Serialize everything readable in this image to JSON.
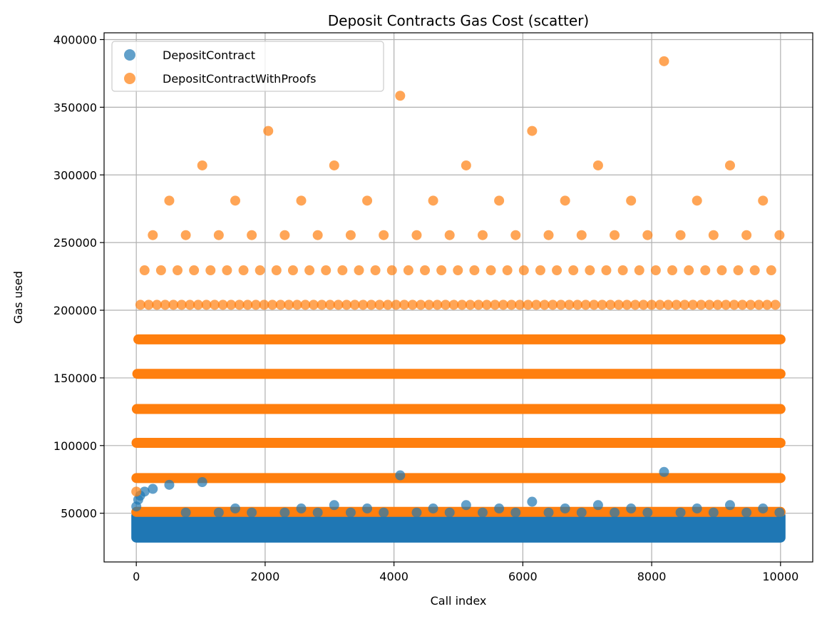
{
  "chart_data": {
    "type": "scatter",
    "title": "Deposit Contracts Gas Cost (scatter)",
    "xlabel": "Call index",
    "ylabel": "Gas used",
    "xlim": [
      -500,
      10500
    ],
    "ylim": [
      14000,
      405000
    ],
    "xticks": [
      0,
      2000,
      4000,
      6000,
      8000,
      10000
    ],
    "yticks": [
      50000,
      100000,
      150000,
      200000,
      250000,
      300000,
      350000,
      400000
    ],
    "grid": true,
    "legend_position": "top-left",
    "series": [
      {
        "name": "DepositContract",
        "color": "#1f77b4",
        "alpha": 0.7,
        "bands": [
          {
            "x_start": 0,
            "x_end": 10000,
            "y_min": 32000,
            "y_max": 48000
          }
        ],
        "points": [
          {
            "x": 0,
            "y": 55000
          },
          {
            "x": 30,
            "y": 60000
          },
          {
            "x": 60,
            "y": 63000
          },
          {
            "x": 128,
            "y": 66000
          },
          {
            "x": 256,
            "y": 68000
          },
          {
            "x": 512,
            "y": 71000
          },
          {
            "x": 1024,
            "y": 73000
          },
          {
            "x": 768,
            "y": 50500
          },
          {
            "x": 1280,
            "y": 50500
          },
          {
            "x": 1536,
            "y": 53500
          },
          {
            "x": 1792,
            "y": 50500
          },
          {
            "x": 2304,
            "y": 50500
          },
          {
            "x": 2560,
            "y": 53500
          },
          {
            "x": 2816,
            "y": 50500
          },
          {
            "x": 3072,
            "y": 56000
          },
          {
            "x": 3328,
            "y": 50500
          },
          {
            "x": 3584,
            "y": 53500
          },
          {
            "x": 3840,
            "y": 50500
          },
          {
            "x": 4096,
            "y": 78000
          },
          {
            "x": 4352,
            "y": 50500
          },
          {
            "x": 4608,
            "y": 53500
          },
          {
            "x": 4864,
            "y": 50500
          },
          {
            "x": 5120,
            "y": 56000
          },
          {
            "x": 5376,
            "y": 50500
          },
          {
            "x": 5632,
            "y": 53500
          },
          {
            "x": 5888,
            "y": 50500
          },
          {
            "x": 6144,
            "y": 58500
          },
          {
            "x": 6400,
            "y": 50500
          },
          {
            "x": 6656,
            "y": 53500
          },
          {
            "x": 6912,
            "y": 50500
          },
          {
            "x": 7168,
            "y": 56000
          },
          {
            "x": 7424,
            "y": 50500
          },
          {
            "x": 7680,
            "y": 53500
          },
          {
            "x": 7936,
            "y": 50500
          },
          {
            "x": 8192,
            "y": 80500
          },
          {
            "x": 8448,
            "y": 50500
          },
          {
            "x": 8704,
            "y": 53500
          },
          {
            "x": 8960,
            "y": 50500
          },
          {
            "x": 9216,
            "y": 56000
          },
          {
            "x": 9472,
            "y": 50500
          },
          {
            "x": 9728,
            "y": 53500
          },
          {
            "x": 9984,
            "y": 50500
          }
        ]
      },
      {
        "name": "DepositContractWithProofs",
        "color": "#ff7f0e",
        "alpha": 0.7,
        "levels": [
          {
            "y": 51000,
            "step": 2,
            "x_start": 0,
            "x_end": 10000
          },
          {
            "y": 76000,
            "step": 4,
            "x_start": 2,
            "x_end": 10000
          },
          {
            "y": 102000,
            "step": 8,
            "x_start": 4,
            "x_end": 10000
          },
          {
            "y": 127000,
            "step": 16,
            "x_start": 8,
            "x_end": 10000
          },
          {
            "y": 153000,
            "step": 32,
            "x_start": 16,
            "x_end": 10000
          },
          {
            "y": 178500,
            "step": 64,
            "x_start": 32,
            "x_end": 10000
          },
          {
            "y": 204000,
            "step": 128,
            "x_start": 64,
            "x_end": 10000
          },
          {
            "y": 229500,
            "step": 256,
            "x_start": 128,
            "x_end": 10000
          },
          {
            "y": 255500,
            "step": 512,
            "x_start": 256,
            "x_end": 10000
          },
          {
            "y": 281000,
            "step": 1024,
            "x_start": 512,
            "x_end": 10000
          },
          {
            "y": 307000,
            "step": 2048,
            "x_start": 1024,
            "x_end": 10000
          },
          {
            "y": 332500,
            "step": 4096,
            "x_start": 2048,
            "x_end": 10000
          },
          {
            "y": 358500,
            "step": 8192,
            "x_start": 4096,
            "x_end": 10000
          },
          {
            "y": 384000,
            "step": 16384,
            "x_start": 8192,
            "x_end": 10000
          }
        ],
        "points": [
          {
            "x": 0,
            "y": 66000
          }
        ]
      }
    ]
  }
}
